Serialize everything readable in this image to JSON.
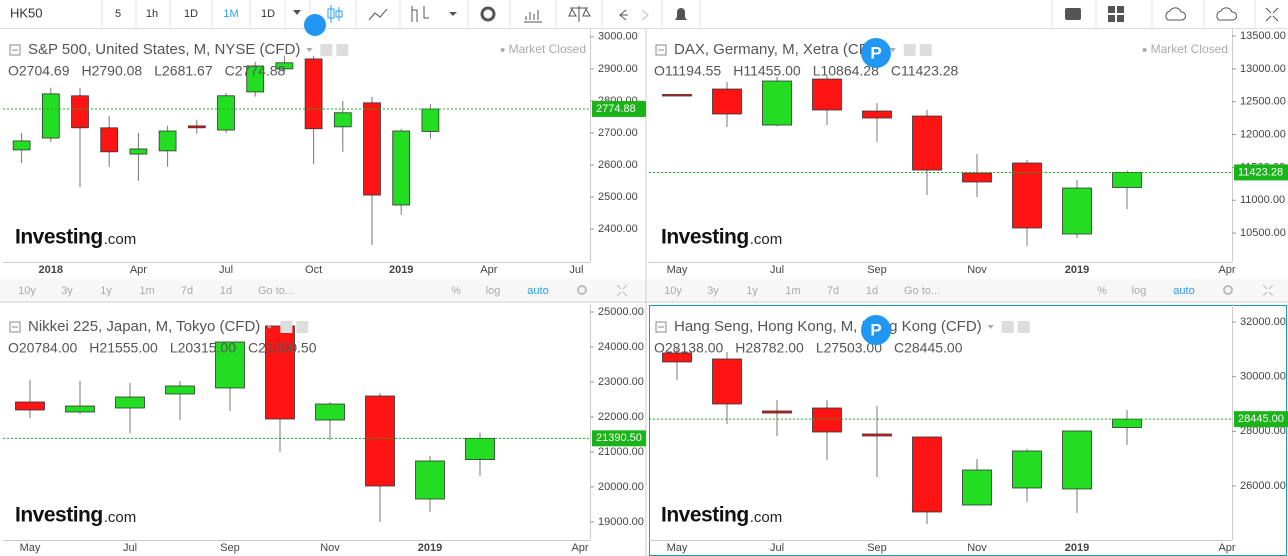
{
  "toolbar": {
    "symbol": "HK50",
    "intervals": [
      "5",
      "1h",
      "1D",
      "1M",
      "1D"
    ],
    "active": 3
  },
  "range_bar": {
    "ranges": [
      "10y",
      "3y",
      "1y",
      "1m",
      "7d",
      "1d"
    ],
    "goto": "Go to...",
    "modes": [
      "%",
      "log",
      "auto"
    ],
    "active_mode": 2
  },
  "chart_data": [
    {
      "type": "candlestick",
      "title": "S&P 500, United States, M, NYSE (CFD)",
      "status": "Market Closed",
      "legend_values": [
        "O2704.69",
        "H2790.08",
        "L2681.67",
        "C2774.88"
      ],
      "brand": [
        "Investing",
        ".com"
      ],
      "categories": [
        null,
        "2018",
        null,
        null,
        "Apr",
        null,
        null,
        "Jul",
        null,
        null,
        "Oct",
        null,
        null,
        "2019",
        null,
        null,
        "Apr",
        null,
        null,
        "Jul"
      ],
      "open": [
        2647,
        2684,
        2816,
        2716,
        2634,
        2644,
        2722,
        2709,
        2828,
        2900,
        2931,
        2719,
        2794,
        2475,
        2704.69,
        null,
        null,
        null,
        null,
        null
      ],
      "high": [
        2700,
        2841,
        2841,
        2753,
        2700,
        2722,
        2741,
        2825,
        2922,
        2941,
        2941,
        2800,
        2813,
        2713,
        2790.08,
        null,
        null,
        null,
        null,
        null
      ],
      "low": [
        2606,
        2672,
        2531,
        2594,
        2550,
        2594,
        2697,
        2700,
        2813,
        2891,
        2603,
        2641,
        2350,
        2444,
        2681.67,
        null,
        null,
        null,
        null,
        null
      ],
      "close": [
        2675,
        2822,
        2716,
        2641,
        2650,
        2706,
        2716,
        2816,
        2909,
        2919,
        2713,
        2763,
        2506,
        2706,
        2774.88,
        null,
        null,
        null,
        null,
        null
      ],
      "price_label": "2774.88",
      "ylim": [
        2297,
        3012
      ],
      "yticks": [
        {
          "value": 2400,
          "label": "2400.00"
        },
        {
          "value": 2500,
          "label": "2500.00"
        },
        {
          "value": 2600,
          "label": "2600.00"
        },
        {
          "value": 2700,
          "label": "2700.00"
        },
        {
          "value": 2800,
          "label": "2800.00"
        },
        {
          "value": 2900,
          "label": "2900.00"
        },
        {
          "value": 3000,
          "label": "3000.00"
        }
      ],
      "up_color": "#22dd22",
      "down_color": "#ff1414",
      "price_line_color": "#18b418"
    },
    {
      "type": "candlestick",
      "title": "DAX, Germany, M, Xetra (CFD)",
      "status": "Market Closed",
      "badge": "P",
      "legend_values": [
        "O11194.55",
        "H11455.00",
        "L10864.28",
        "C11423.28"
      ],
      "brand": [
        "Investing",
        ".com"
      ],
      "categories": [
        "May",
        null,
        "Jul",
        null,
        "Sep",
        null,
        "Nov",
        null,
        "2019",
        null,
        null,
        "Apr"
      ],
      "open": [
        12610,
        12693,
        12145,
        12845,
        12358,
        12282,
        11415,
        11567,
        10486,
        11194.55,
        null,
        null
      ],
      "high": [
        12620,
        12800,
        12876,
        12891,
        12480,
        12374,
        11704,
        11613,
        11308,
        11455,
        null,
        null
      ],
      "low": [
        12590,
        12115,
        12125,
        12145,
        11887,
        11080,
        11049,
        10304,
        10425,
        10864.28,
        null,
        null
      ],
      "close": [
        12600,
        12313,
        12815,
        12374,
        12252,
        11460,
        11278,
        10578,
        11186,
        11423.28,
        null,
        null
      ],
      "price_label": "11423.28",
      "ylim": [
        10060,
        13546
      ],
      "yticks": [
        {
          "value": 10500,
          "label": "10500.00"
        },
        {
          "value": 11000,
          "label": "11000.00"
        },
        {
          "value": 11500,
          "label": "11500.00"
        },
        {
          "value": 12000,
          "label": "12000.00"
        },
        {
          "value": 12500,
          "label": "12500.00"
        },
        {
          "value": 13000,
          "label": "13000.00"
        },
        {
          "value": 13500,
          "label": "13500.00"
        }
      ],
      "up_color": "#22dd22",
      "down_color": "#ff1414",
      "price_line_color": "#18b418"
    },
    {
      "type": "candlestick",
      "title": "Nikkei 225, Japan, M, Tokyo (CFD)",
      "legend_values": [
        "O20784.00",
        "H21555.00",
        "L20315.00",
        "C21390.50"
      ],
      "brand": [
        "Investing",
        ".com"
      ],
      "categories": [
        "May",
        null,
        "Jul",
        null,
        "Sep",
        null,
        "Nov",
        null,
        "2019",
        null,
        null,
        "Apr"
      ],
      "open": [
        22429,
        22143,
        22257,
        22657,
        22829,
        24600,
        21914,
        22600,
        19657,
        20784,
        null,
        null
      ],
      "high": [
        23057,
        23029,
        22971,
        23029,
        24143,
        24600,
        22429,
        22686,
        20886,
        21555,
        null,
        null
      ],
      "low": [
        21971,
        22086,
        21543,
        21914,
        22171,
        21000,
        21343,
        19000,
        19286,
        20315,
        null,
        null
      ],
      "close": [
        22200,
        22314,
        22571,
        22886,
        24143,
        21943,
        22371,
        20029,
        20743,
        21390.5,
        null,
        null
      ],
      "price_label": "21390.50",
      "ylim": [
        18486,
        25114
      ],
      "yticks": [
        {
          "value": 19000,
          "label": "19000.00"
        },
        {
          "value": 20000,
          "label": "20000.00"
        },
        {
          "value": 21000,
          "label": "21000.00"
        },
        {
          "value": 22000,
          "label": "22000.00"
        },
        {
          "value": 23000,
          "label": "23000.00"
        },
        {
          "value": 24000,
          "label": "24000.00"
        },
        {
          "value": 25000,
          "label": "25000.00"
        }
      ],
      "up_color": "#22dd22",
      "down_color": "#ff1414",
      "price_line_color": "#18b418"
    },
    {
      "type": "candlestick",
      "title": "Hang Seng, Hong Kong, M, Hong Kong (CFD)",
      "badge": "P",
      "legend_values": [
        "O28138.00",
        "H28782.00",
        "L27503.00",
        "C28445.00"
      ],
      "brand": [
        "Investing",
        ".com"
      ],
      "categories": [
        "May",
        null,
        "Jul",
        null,
        "Sep",
        null,
        "Nov",
        null,
        "2019",
        null,
        null,
        "Apr"
      ],
      "open": [
        30866,
        30646,
        28744,
        28853,
        27902,
        27792,
        25304,
        25926,
        25890,
        28138,
        null,
        null
      ],
      "high": [
        31049,
        30902,
        29146,
        29146,
        28927,
        27792,
        26987,
        27353,
        28012,
        28782,
        null,
        null
      ],
      "low": [
        29878,
        28268,
        27829,
        26950,
        26329,
        24609,
        25304,
        25414,
        25011,
        27503,
        null,
        null
      ],
      "close": [
        30537,
        29000,
        28670,
        27975,
        27829,
        25048,
        26585,
        27280,
        28012,
        28445,
        null,
        null
      ],
      "price_label": "28445.00",
      "ylim": [
        24023,
        32512
      ],
      "yticks": [
        {
          "value": 26000,
          "label": "26000.00"
        },
        {
          "value": 28000,
          "label": "28000.00"
        },
        {
          "value": 30000,
          "label": "30000.00"
        },
        {
          "value": 32000,
          "label": "32000.00"
        }
      ],
      "up_color": "#22dd22",
      "down_color": "#ff1414",
      "price_line_color": "#18b418"
    }
  ]
}
